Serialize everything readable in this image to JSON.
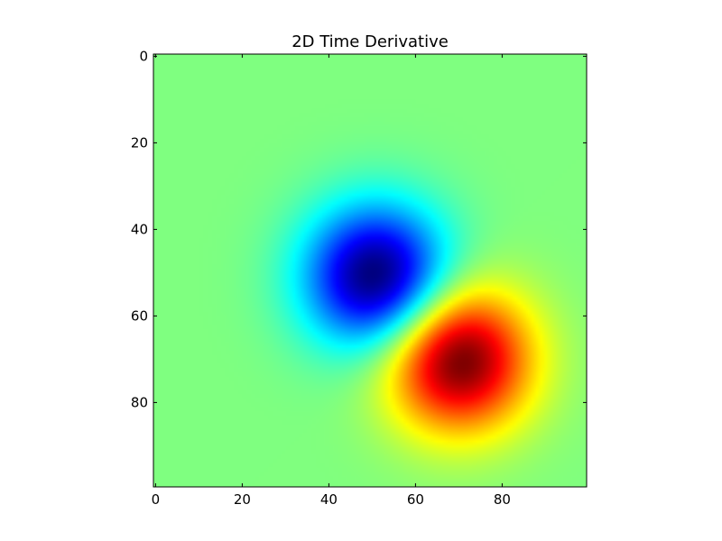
{
  "chart_data": {
    "type": "heatmap",
    "title": "2D Time Derivative",
    "xlabel": "",
    "ylabel": "",
    "grid_size": [
      100,
      100
    ],
    "xlim": [
      -0.5,
      99.5
    ],
    "ylim": [
      99.5,
      -0.5
    ],
    "y_axis_inverted": true,
    "colormap": "jet",
    "value_range": [
      -1,
      1
    ],
    "x_ticks": [
      0,
      20,
      40,
      60,
      80
    ],
    "y_ticks": [
      0,
      20,
      40,
      60,
      80
    ],
    "x_tick_labels": [
      "0",
      "20",
      "40",
      "60",
      "80"
    ],
    "y_tick_labels": [
      "0",
      "20",
      "40",
      "60",
      "80"
    ],
    "features": [
      {
        "kind": "minimum",
        "center_x": 51,
        "center_y": 51,
        "value": -1,
        "color": "#00008b"
      },
      {
        "kind": "maximum",
        "center_x": 70,
        "center_y": 70,
        "value": 1,
        "color": "#8b0000"
      }
    ],
    "background_value": 0,
    "background_color": "#7fff7f",
    "grid": false
  }
}
